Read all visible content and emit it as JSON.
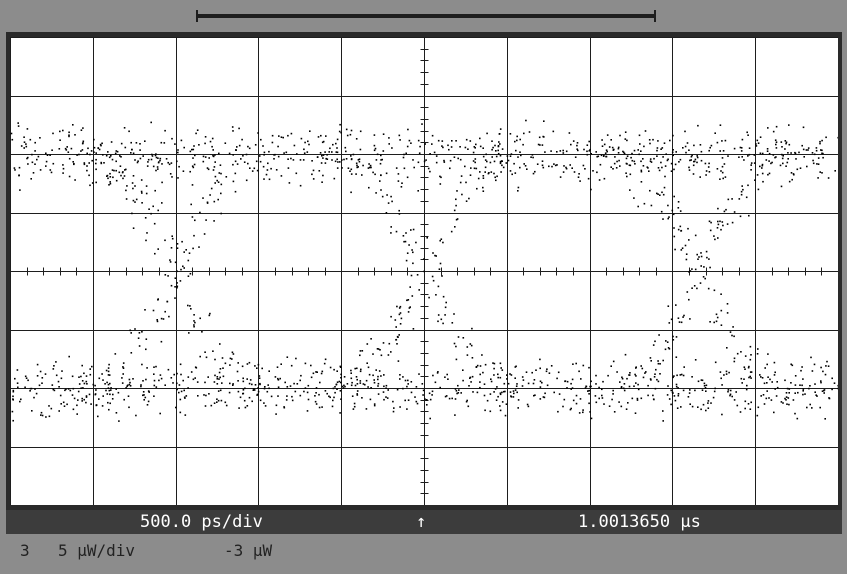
{
  "chart_data": {
    "type": "scatter",
    "title": "",
    "xlabel": "",
    "ylabel": "",
    "grid": true,
    "x_divisions": 10,
    "y_divisions": 8,
    "xlim": [
      -2500,
      2500
    ],
    "ylim": [
      -20,
      20
    ],
    "x_unit": "ps",
    "y_unit": "μW",
    "series": [
      {
        "kind": "eye-diagram",
        "high_level": 10,
        "low_level": -10,
        "level_noise_rms": 1.2,
        "crossing_level": 0,
        "crossings_x": [
          -1500,
          0,
          1650
        ],
        "transition_width": 1100,
        "color": "#000000"
      }
    ]
  },
  "status": {
    "time_scale": "500.0 ps/div",
    "trigger_marker": "↑",
    "time_position": "1.0013650 μs"
  },
  "channel": {
    "number": "3",
    "vertical_scale": "5 μW/div",
    "offset": "-3 μW"
  },
  "colors": {
    "screen_bg": "#ffffff",
    "grid": "#1e1e1e",
    "trace": "#000000",
    "bezel": "#8c8c8c",
    "status_bar": "#3c3c3c"
  }
}
